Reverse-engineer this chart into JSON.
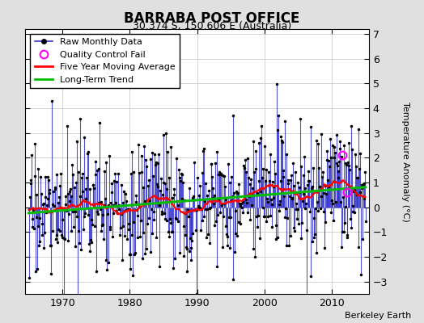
{
  "title": "BARRABA POST OFFICE",
  "subtitle": "30.374 S, 150.606 E (Australia)",
  "ylabel": "Temperature Anomaly (°C)",
  "credit": "Berkeley Earth",
  "ylim": [
    -3.5,
    7.2
  ],
  "yticks": [
    -3,
    -2,
    -1,
    0,
    1,
    2,
    3,
    4,
    5,
    6,
    7
  ],
  "xticks": [
    1970,
    1980,
    1990,
    2000,
    2010
  ],
  "xlim": [
    1964.5,
    2015.5
  ],
  "outer_bg": "#e0e0e0",
  "plot_bg": "#ffffff",
  "line_color": "#3333cc",
  "ma_color": "#ff0000",
  "trend_color": "#00bb00",
  "qc_color": "#ff00ff",
  "title_fontsize": 12,
  "subtitle_fontsize": 9,
  "legend_fontsize": 8,
  "credit_fontsize": 8
}
